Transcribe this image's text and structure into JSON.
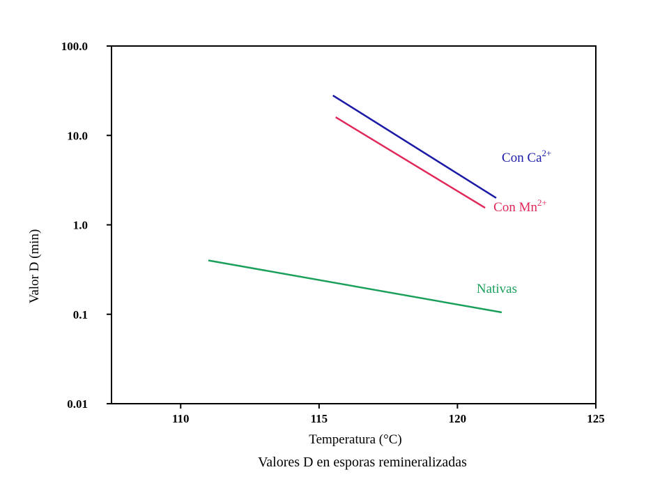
{
  "chart_data": {
    "type": "line",
    "title": "",
    "xlabel": "Temperatura (°C)",
    "ylabel": "Valor D (min)",
    "caption": "Valores D en esporas remineralizadas",
    "xlim": [
      107.5,
      125
    ],
    "ylim": [
      0.01,
      100
    ],
    "yscale": "log",
    "grid": false,
    "xticks": [
      110,
      115,
      120,
      125
    ],
    "xtick_labels": [
      "110",
      "115",
      "120",
      "125"
    ],
    "yticks": [
      0.01,
      0.1,
      1,
      10,
      100
    ],
    "ytick_labels": [
      "0.01",
      "0.1",
      "1.0",
      "10.0",
      "100.0"
    ],
    "series": [
      {
        "name": "Con Ca2+",
        "label_text": "Con Ca",
        "label_sup": "2+",
        "color": "#1a1aa6",
        "x": [
          115.5,
          121.4
        ],
        "y": [
          28,
          2.0
        ]
      },
      {
        "name": "Con Mn2+",
        "label_text": "Con Mn",
        "label_sup": "2+",
        "color": "#e0285a",
        "x": [
          115.6,
          121.0
        ],
        "y": [
          16,
          1.55
        ]
      },
      {
        "name": "Nativas",
        "label_text": "Nativas",
        "label_sup": "",
        "color": "#1aa05a",
        "x": [
          111.0,
          121.6
        ],
        "y": [
          0.4,
          0.105
        ]
      }
    ]
  }
}
